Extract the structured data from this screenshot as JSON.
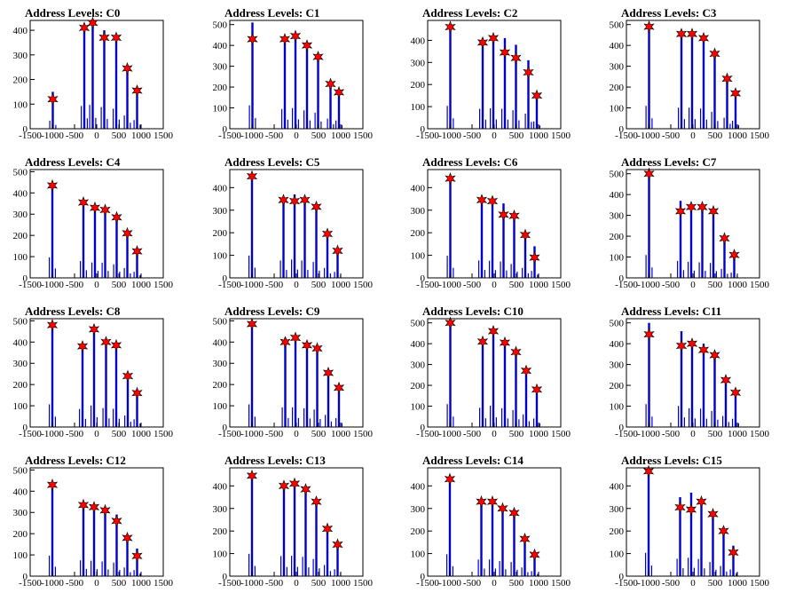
{
  "figure": {
    "background": "#ffffff",
    "axis_color": "#000000",
    "bar_color": "#0000cc",
    "marker_color": "#ff0000",
    "marker_edge_color": "#000000",
    "marker_shape": "star-icon"
  },
  "chart_data": [
    {
      "type": "bar",
      "title": "Address Levels: C0",
      "xlim": [
        -1500,
        1500
      ],
      "ylim": [
        0,
        440
      ],
      "xticks": [
        "-1500",
        "-1000",
        "-500",
        "0",
        "500",
        "1000",
        "1500"
      ],
      "yticks": [
        "0",
        "100",
        "200",
        "300",
        "400"
      ],
      "peaks": [
        {
          "x": -990,
          "y": 120,
          "bar": 150
        },
        {
          "x": -280,
          "y": 410,
          "bar": 420
        },
        {
          "x": -90,
          "y": 430,
          "bar": 440
        },
        {
          "x": 170,
          "y": 370,
          "bar": 400
        },
        {
          "x": 440,
          "y": 370,
          "bar": 370
        },
        {
          "x": 690,
          "y": 245,
          "bar": 245
        },
        {
          "x": 910,
          "y": 155,
          "bar": 160
        }
      ]
    },
    {
      "type": "bar",
      "title": "Address Levels: C1",
      "xlim": [
        -1500,
        1500
      ],
      "ylim": [
        0,
        520
      ],
      "xticks": [
        "-1500",
        "-1000",
        "-500",
        "0",
        "500",
        "1000",
        "1500"
      ],
      "yticks": [
        "0",
        "100",
        "200",
        "300",
        "400",
        "500"
      ],
      "peaks": [
        {
          "x": -990,
          "y": 430,
          "bar": 510
        },
        {
          "x": -260,
          "y": 430,
          "bar": 430
        },
        {
          "x": -20,
          "y": 445,
          "bar": 450
        },
        {
          "x": 240,
          "y": 400,
          "bar": 400
        },
        {
          "x": 490,
          "y": 345,
          "bar": 350
        },
        {
          "x": 770,
          "y": 215,
          "bar": 220
        },
        {
          "x": 960,
          "y": 175,
          "bar": 180
        }
      ]
    },
    {
      "type": "bar",
      "title": "Address Levels: C2",
      "xlim": [
        -1500,
        1500
      ],
      "ylim": [
        0,
        490
      ],
      "xticks": [
        "-1500",
        "-1000",
        "-500",
        "0",
        "500",
        "1000",
        "1500"
      ],
      "yticks": [
        "0",
        "100",
        "200",
        "300",
        "400"
      ],
      "peaks": [
        {
          "x": -990,
          "y": 460,
          "bar": 470
        },
        {
          "x": -260,
          "y": 390,
          "bar": 410
        },
        {
          "x": -20,
          "y": 410,
          "bar": 420
        },
        {
          "x": 240,
          "y": 345,
          "bar": 410
        },
        {
          "x": 490,
          "y": 320,
          "bar": 380
        },
        {
          "x": 770,
          "y": 255,
          "bar": 310
        },
        {
          "x": 960,
          "y": 150,
          "bar": 150
        }
      ]
    },
    {
      "type": "bar",
      "title": "Address Levels: C3",
      "xlim": [
        -1500,
        1500
      ],
      "ylim": [
        0,
        520
      ],
      "xticks": [
        "-1500",
        "-1000",
        "-500",
        "0",
        "500",
        "1000",
        "1500"
      ],
      "yticks": [
        "0",
        "100",
        "200",
        "300",
        "400",
        "500"
      ],
      "peaks": [
        {
          "x": -990,
          "y": 490,
          "bar": 500
        },
        {
          "x": -260,
          "y": 455,
          "bar": 460
        },
        {
          "x": -20,
          "y": 455,
          "bar": 460
        },
        {
          "x": 240,
          "y": 435,
          "bar": 440
        },
        {
          "x": 490,
          "y": 360,
          "bar": 370
        },
        {
          "x": 770,
          "y": 240,
          "bar": 240
        },
        {
          "x": 960,
          "y": 170,
          "bar": 175
        }
      ]
    },
    {
      "type": "bar",
      "title": "Address Levels: C4",
      "xlim": [
        -1500,
        1500
      ],
      "ylim": [
        0,
        510
      ],
      "xticks": [
        "-1500",
        "-1000",
        "-500",
        "0",
        "500",
        "1000",
        "1500"
      ],
      "yticks": [
        "0",
        "100",
        "200",
        "300",
        "400",
        "500"
      ],
      "peaks": [
        {
          "x": -1000,
          "y": 435,
          "bar": 440
        },
        {
          "x": -300,
          "y": 355,
          "bar": 360
        },
        {
          "x": -40,
          "y": 330,
          "bar": 330
        },
        {
          "x": 190,
          "y": 320,
          "bar": 325
        },
        {
          "x": 450,
          "y": 285,
          "bar": 290
        },
        {
          "x": 690,
          "y": 210,
          "bar": 210
        },
        {
          "x": 910,
          "y": 125,
          "bar": 130
        }
      ]
    },
    {
      "type": "bar",
      "title": "Address Levels: C5",
      "xlim": [
        -1500,
        1500
      ],
      "ylim": [
        0,
        480
      ],
      "xticks": [
        "-1500",
        "-1000",
        "-500",
        "0",
        "500",
        "1000",
        "1500"
      ],
      "yticks": [
        "0",
        "100",
        "200",
        "300",
        "400"
      ],
      "peaks": [
        {
          "x": -1000,
          "y": 450,
          "bar": 450
        },
        {
          "x": -290,
          "y": 345,
          "bar": 350
        },
        {
          "x": -40,
          "y": 340,
          "bar": 370
        },
        {
          "x": 190,
          "y": 345,
          "bar": 350
        },
        {
          "x": 450,
          "y": 315,
          "bar": 320
        },
        {
          "x": 700,
          "y": 195,
          "bar": 200
        },
        {
          "x": 930,
          "y": 120,
          "bar": 120
        }
      ]
    },
    {
      "type": "bar",
      "title": "Address Levels: C6",
      "xlim": [
        -1500,
        1500
      ],
      "ylim": [
        0,
        480
      ],
      "xticks": [
        "-1500",
        "-1000",
        "-500",
        "0",
        "500",
        "1000",
        "1500"
      ],
      "yticks": [
        "0",
        "100",
        "200",
        "300",
        "400"
      ],
      "peaks": [
        {
          "x": -990,
          "y": 440,
          "bar": 445
        },
        {
          "x": -280,
          "y": 345,
          "bar": 350
        },
        {
          "x": -40,
          "y": 340,
          "bar": 345
        },
        {
          "x": 210,
          "y": 280,
          "bar": 330
        },
        {
          "x": 450,
          "y": 275,
          "bar": 280
        },
        {
          "x": 700,
          "y": 190,
          "bar": 200
        },
        {
          "x": 910,
          "y": 90,
          "bar": 140
        }
      ]
    },
    {
      "type": "bar",
      "title": "Address Levels: C7",
      "xlim": [
        -1500,
        1500
      ],
      "ylim": [
        0,
        520
      ],
      "xticks": [
        "-1500",
        "-1000",
        "-500",
        "0",
        "500",
        "1000",
        "1500"
      ],
      "yticks": [
        "0",
        "100",
        "200",
        "300",
        "400",
        "500"
      ],
      "peaks": [
        {
          "x": -990,
          "y": 500,
          "bar": 500
        },
        {
          "x": -280,
          "y": 320,
          "bar": 370
        },
        {
          "x": -40,
          "y": 340,
          "bar": 350
        },
        {
          "x": 210,
          "y": 340,
          "bar": 340
        },
        {
          "x": 460,
          "y": 320,
          "bar": 325
        },
        {
          "x": 710,
          "y": 190,
          "bar": 195
        },
        {
          "x": 930,
          "y": 110,
          "bar": 115
        }
      ]
    },
    {
      "type": "bar",
      "title": "Address Levels: C8",
      "xlim": [
        -1500,
        1500
      ],
      "ylim": [
        0,
        510
      ],
      "xticks": [
        "-1500",
        "-1000",
        "-500",
        "0",
        "500",
        "1000",
        "1500"
      ],
      "yticks": [
        "0",
        "100",
        "200",
        "300",
        "400",
        "500"
      ],
      "peaks": [
        {
          "x": -1000,
          "y": 480,
          "bar": 485
        },
        {
          "x": -320,
          "y": 380,
          "bar": 385
        },
        {
          "x": -60,
          "y": 460,
          "bar": 460
        },
        {
          "x": 210,
          "y": 400,
          "bar": 405
        },
        {
          "x": 440,
          "y": 385,
          "bar": 390
        },
        {
          "x": 700,
          "y": 240,
          "bar": 245
        },
        {
          "x": 910,
          "y": 160,
          "bar": 165
        }
      ]
    },
    {
      "type": "bar",
      "title": "Address Levels: C9",
      "xlim": [
        -1500,
        1500
      ],
      "ylim": [
        0,
        510
      ],
      "xticks": [
        "-1500",
        "-1000",
        "-500",
        "0",
        "500",
        "1000",
        "1500"
      ],
      "yticks": [
        "0",
        "100",
        "200",
        "300",
        "400",
        "500"
      ],
      "peaks": [
        {
          "x": -1000,
          "y": 485,
          "bar": 485
        },
        {
          "x": -250,
          "y": 400,
          "bar": 420
        },
        {
          "x": -20,
          "y": 420,
          "bar": 420
        },
        {
          "x": 240,
          "y": 385,
          "bar": 400
        },
        {
          "x": 470,
          "y": 370,
          "bar": 375
        },
        {
          "x": 720,
          "y": 255,
          "bar": 260
        },
        {
          "x": 960,
          "y": 185,
          "bar": 190
        }
      ]
    },
    {
      "type": "bar",
      "title": "Address Levels: C10",
      "xlim": [
        -1500,
        1500
      ],
      "ylim": [
        0,
        520
      ],
      "xticks": [
        "-1500",
        "-1000",
        "-500",
        "0",
        "500",
        "1000",
        "1500"
      ],
      "yticks": [
        "0",
        "100",
        "200",
        "300",
        "400",
        "500"
      ],
      "peaks": [
        {
          "x": -990,
          "y": 500,
          "bar": 500
        },
        {
          "x": -260,
          "y": 410,
          "bar": 420
        },
        {
          "x": -20,
          "y": 460,
          "bar": 465
        },
        {
          "x": 240,
          "y": 405,
          "bar": 410
        },
        {
          "x": 490,
          "y": 360,
          "bar": 370
        },
        {
          "x": 720,
          "y": 270,
          "bar": 275
        },
        {
          "x": 960,
          "y": 180,
          "bar": 185
        }
      ]
    },
    {
      "type": "bar",
      "title": "Address Levels: C11",
      "xlim": [
        -1500,
        1500
      ],
      "ylim": [
        0,
        520
      ],
      "xticks": [
        "-1500",
        "-1000",
        "-500",
        "0",
        "500",
        "1000",
        "1500"
      ],
      "yticks": [
        "0",
        "100",
        "200",
        "300",
        "400",
        "500"
      ],
      "peaks": [
        {
          "x": -990,
          "y": 445,
          "bar": 500
        },
        {
          "x": -260,
          "y": 390,
          "bar": 460
        },
        {
          "x": -20,
          "y": 400,
          "bar": 410
        },
        {
          "x": 240,
          "y": 370,
          "bar": 400
        },
        {
          "x": 490,
          "y": 345,
          "bar": 350
        },
        {
          "x": 740,
          "y": 225,
          "bar": 240
        },
        {
          "x": 960,
          "y": 165,
          "bar": 180
        }
      ]
    },
    {
      "type": "bar",
      "title": "Address Levels: C12",
      "xlim": [
        -1500,
        1500
      ],
      "ylim": [
        0,
        510
      ],
      "xticks": [
        "-1500",
        "-1000",
        "-500",
        "0",
        "500",
        "1000",
        "1500"
      ],
      "yticks": [
        "0",
        "100",
        "200",
        "300",
        "400",
        "500"
      ],
      "peaks": [
        {
          "x": -1000,
          "y": 430,
          "bar": 440
        },
        {
          "x": -300,
          "y": 335,
          "bar": 340
        },
        {
          "x": -60,
          "y": 325,
          "bar": 330
        },
        {
          "x": 190,
          "y": 310,
          "bar": 315
        },
        {
          "x": 450,
          "y": 260,
          "bar": 290
        },
        {
          "x": 690,
          "y": 180,
          "bar": 185
        },
        {
          "x": 910,
          "y": 95,
          "bar": 130
        }
      ]
    },
    {
      "type": "bar",
      "title": "Address Levels: C13",
      "xlim": [
        -1500,
        1500
      ],
      "ylim": [
        0,
        480
      ],
      "xticks": [
        "-1500",
        "-1000",
        "-500",
        "0",
        "500",
        "1000",
        "1500"
      ],
      "yticks": [
        "0",
        "100",
        "200",
        "300",
        "400"
      ],
      "peaks": [
        {
          "x": -1000,
          "y": 445,
          "bar": 450
        },
        {
          "x": -280,
          "y": 400,
          "bar": 405
        },
        {
          "x": -40,
          "y": 410,
          "bar": 410
        },
        {
          "x": 210,
          "y": 385,
          "bar": 390
        },
        {
          "x": 450,
          "y": 330,
          "bar": 345
        },
        {
          "x": 700,
          "y": 210,
          "bar": 225
        },
        {
          "x": 930,
          "y": 140,
          "bar": 140
        }
      ]
    },
    {
      "type": "bar",
      "title": "Address Levels: C14",
      "xlim": [
        -1500,
        1500
      ],
      "ylim": [
        0,
        480
      ],
      "xticks": [
        "-1500",
        "-1000",
        "-500",
        "0",
        "500",
        "1000",
        "1500"
      ],
      "yticks": [
        "0",
        "100",
        "200",
        "300",
        "400"
      ],
      "peaks": [
        {
          "x": -1000,
          "y": 430,
          "bar": 440
        },
        {
          "x": -290,
          "y": 330,
          "bar": 335
        },
        {
          "x": -40,
          "y": 330,
          "bar": 335
        },
        {
          "x": 190,
          "y": 300,
          "bar": 305
        },
        {
          "x": 450,
          "y": 280,
          "bar": 285
        },
        {
          "x": 690,
          "y": 165,
          "bar": 175
        },
        {
          "x": 910,
          "y": 95,
          "bar": 100
        }
      ]
    },
    {
      "type": "bar",
      "title": "Address Levels: C15",
      "xlim": [
        -1500,
        1500
      ],
      "ylim": [
        0,
        480
      ],
      "xticks": [
        "-1500",
        "-1000",
        "-500",
        "0",
        "500",
        "1000",
        "1500"
      ],
      "yticks": [
        "0",
        "100",
        "200",
        "300",
        "400"
      ],
      "peaks": [
        {
          "x": -1000,
          "y": 465,
          "bar": 470
        },
        {
          "x": -290,
          "y": 305,
          "bar": 350
        },
        {
          "x": -40,
          "y": 295,
          "bar": 370
        },
        {
          "x": 190,
          "y": 330,
          "bar": 345
        },
        {
          "x": 450,
          "y": 275,
          "bar": 285
        },
        {
          "x": 690,
          "y": 200,
          "bar": 205
        },
        {
          "x": 910,
          "y": 105,
          "bar": 135
        }
      ]
    }
  ]
}
